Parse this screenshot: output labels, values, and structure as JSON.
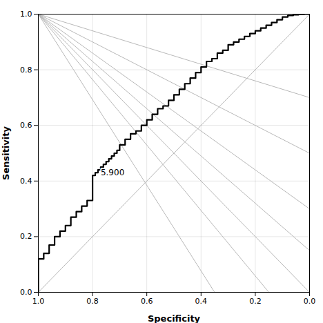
{
  "chart_data": {
    "type": "line",
    "xlabel": "Specificity",
    "ylabel": "Sensitivity",
    "xlim": [
      1.0,
      0.0
    ],
    "ylim": [
      0.0,
      1.0
    ],
    "xticks": [
      {
        "value": 1.0,
        "label": "1.0"
      },
      0.8,
      0.6,
      0.4,
      0.2,
      {
        "value": 0.0,
        "label": "0.0"
      }
    ],
    "yticks": [
      {
        "value": 0.0,
        "label": "0.0"
      },
      0.2,
      0.4,
      0.6,
      0.8,
      {
        "value": 1.0,
        "label": "1.0"
      }
    ],
    "grid": true,
    "annotations": [
      {
        "text": "5.900",
        "x": 0.775,
        "y": 0.415
      }
    ],
    "series": [
      {
        "color": "#b0b0b0",
        "x": [
          1.0,
          0.0
        ],
        "values": [
          0.0,
          1.0
        ]
      },
      {
        "color": "#b0b0b0",
        "x": [
          1.0,
          0.0
        ],
        "values": [
          1.0,
          0.0
        ]
      },
      {
        "color": "#b0b0b0",
        "x": [
          1.0,
          0.0
        ],
        "values": [
          1.0,
          0.15
        ]
      },
      {
        "color": "#b0b0b0",
        "x": [
          1.0,
          0.0
        ],
        "values": [
          1.0,
          0.3
        ]
      },
      {
        "color": "#b0b0b0",
        "x": [
          1.0,
          0.0
        ],
        "values": [
          1.0,
          0.5
        ]
      },
      {
        "color": "#b0b0b0",
        "x": [
          1.0,
          0.0
        ],
        "values": [
          1.0,
          0.7
        ]
      },
      {
        "color": "#b0b0b0",
        "x": [
          1.0,
          0.15
        ],
        "values": [
          1.0,
          0.0
        ]
      },
      {
        "color": "#b0b0b0",
        "x": [
          1.0,
          0.35
        ],
        "values": [
          1.0,
          0.0
        ]
      },
      {
        "color": "#000000",
        "x": [
          1.0,
          1.0,
          0.98,
          0.98,
          0.96,
          0.96,
          0.94,
          0.94,
          0.92,
          0.92,
          0.9,
          0.9,
          0.88,
          0.88,
          0.86,
          0.86,
          0.84,
          0.84,
          0.82,
          0.82,
          0.8,
          0.8,
          0.79,
          0.79,
          0.78,
          0.78,
          0.77,
          0.77,
          0.76,
          0.76,
          0.75,
          0.75,
          0.74,
          0.74,
          0.73,
          0.73,
          0.72,
          0.72,
          0.71,
          0.71,
          0.7,
          0.7,
          0.68,
          0.68,
          0.66,
          0.66,
          0.64,
          0.64,
          0.62,
          0.62,
          0.6,
          0.6,
          0.58,
          0.58,
          0.56,
          0.56,
          0.54,
          0.54,
          0.52,
          0.52,
          0.5,
          0.5,
          0.48,
          0.48,
          0.46,
          0.46,
          0.44,
          0.44,
          0.42,
          0.42,
          0.4,
          0.4,
          0.38,
          0.38,
          0.36,
          0.36,
          0.34,
          0.34,
          0.32,
          0.32,
          0.3,
          0.3,
          0.28,
          0.28,
          0.26,
          0.26,
          0.24,
          0.24,
          0.22,
          0.22,
          0.2,
          0.2,
          0.18,
          0.18,
          0.16,
          0.16,
          0.14,
          0.14,
          0.12,
          0.12,
          0.1,
          0.1,
          0.08,
          0.08,
          0.06,
          0.06,
          0.04,
          0.04,
          0.02,
          0.02,
          0.0
        ],
        "values": [
          0.0,
          0.12,
          0.12,
          0.14,
          0.14,
          0.17,
          0.17,
          0.2,
          0.2,
          0.22,
          0.22,
          0.24,
          0.24,
          0.27,
          0.27,
          0.29,
          0.29,
          0.31,
          0.31,
          0.33,
          0.33,
          0.42,
          0.42,
          0.43,
          0.43,
          0.44,
          0.44,
          0.45,
          0.45,
          0.46,
          0.46,
          0.47,
          0.47,
          0.48,
          0.48,
          0.49,
          0.49,
          0.5,
          0.5,
          0.51,
          0.51,
          0.53,
          0.53,
          0.55,
          0.55,
          0.57,
          0.57,
          0.58,
          0.58,
          0.6,
          0.6,
          0.62,
          0.62,
          0.64,
          0.64,
          0.66,
          0.66,
          0.67,
          0.67,
          0.69,
          0.69,
          0.71,
          0.71,
          0.73,
          0.73,
          0.75,
          0.75,
          0.77,
          0.77,
          0.79,
          0.79,
          0.81,
          0.81,
          0.83,
          0.83,
          0.84,
          0.84,
          0.86,
          0.86,
          0.87,
          0.87,
          0.89,
          0.89,
          0.9,
          0.9,
          0.91,
          0.91,
          0.92,
          0.92,
          0.93,
          0.93,
          0.94,
          0.94,
          0.95,
          0.95,
          0.96,
          0.96,
          0.97,
          0.97,
          0.98,
          0.98,
          0.99,
          0.99,
          0.995,
          0.995,
          0.998,
          0.998,
          0.999,
          0.999,
          1.0,
          1.0
        ]
      }
    ]
  }
}
